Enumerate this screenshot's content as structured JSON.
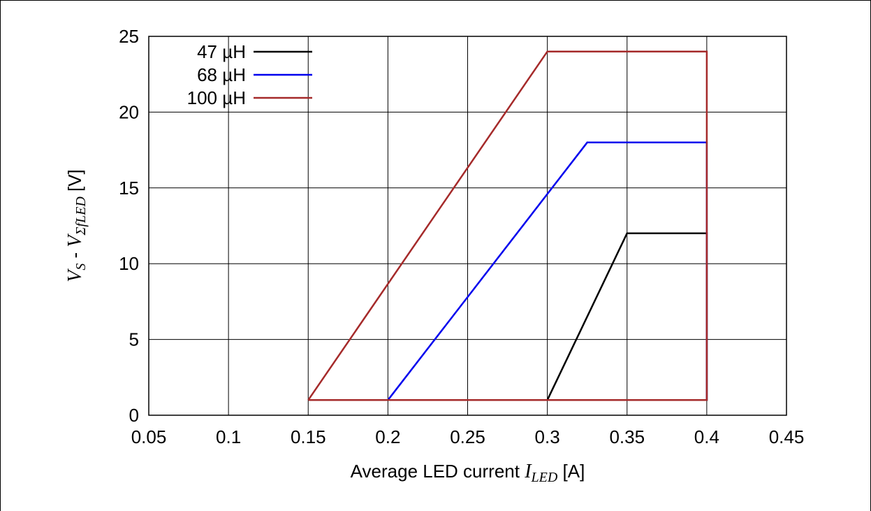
{
  "chart_data": {
    "type": "line",
    "xlabel": {
      "prefix": "Average LED current ",
      "var_main": "I",
      "var_sub": "LED",
      "suffix": " [A]"
    },
    "ylabel": {
      "var1_main": "V",
      "var1_sub": "S",
      "mid": " - ",
      "var2_main": "V",
      "var2_sub": "ΣfLED",
      "suffix": " [V]"
    },
    "xlim": [
      0.05,
      0.45
    ],
    "ylim": [
      0,
      25
    ],
    "xticks": [
      "0.05",
      "0.1",
      "0.15",
      "0.2",
      "0.25",
      "0.3",
      "0.35",
      "0.4",
      "0.45"
    ],
    "yticks": [
      "0",
      "5",
      "10",
      "15",
      "20",
      "25"
    ],
    "grid": true,
    "legend_position": "top-left",
    "series": [
      {
        "name": "47 µH",
        "color": "#000000",
        "points": [
          [
            0.3,
            1
          ],
          [
            0.35,
            12
          ],
          [
            0.4,
            12
          ],
          [
            0.4,
            1
          ],
          [
            0.3,
            1
          ]
        ]
      },
      {
        "name": "68 µH",
        "color": "#0000ee",
        "points": [
          [
            0.2,
            1
          ],
          [
            0.325,
            18
          ],
          [
            0.4,
            18
          ],
          [
            0.4,
            1
          ],
          [
            0.2,
            1
          ]
        ]
      },
      {
        "name": "100 µH",
        "color": "#a52a2a",
        "points": [
          [
            0.15,
            1
          ],
          [
            0.3,
            24
          ],
          [
            0.4,
            24
          ],
          [
            0.4,
            1
          ],
          [
            0.15,
            1
          ]
        ]
      }
    ]
  }
}
